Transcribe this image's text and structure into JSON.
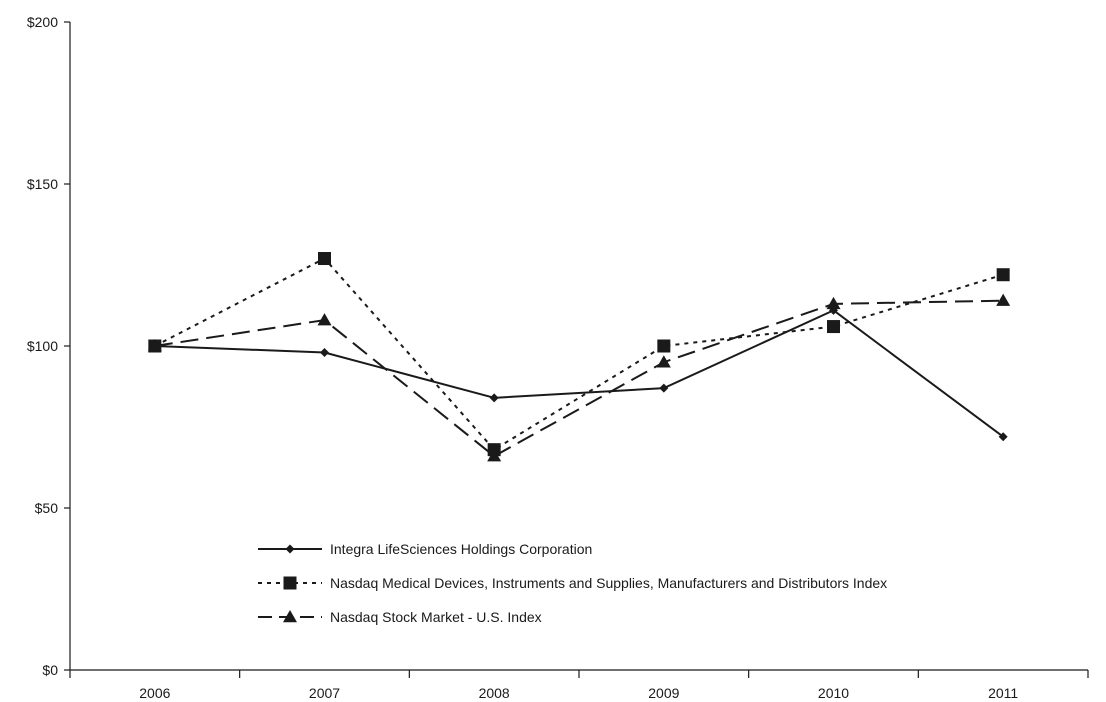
{
  "chart_data": {
    "type": "line",
    "title": "",
    "xlabel": "",
    "ylabel": "",
    "categories": [
      "2006",
      "2007",
      "2008",
      "2009",
      "2010",
      "2011"
    ],
    "ylim": [
      0,
      200
    ],
    "yticks": [
      0,
      50,
      100,
      150,
      200
    ],
    "ytick_labels": [
      "$0",
      "$50",
      "$100",
      "$150",
      "$200"
    ],
    "grid": false,
    "legend_position": "lower-left",
    "series": [
      {
        "name": "Integra LifeSciences Holdings Corporation",
        "values": [
          100,
          98,
          84,
          87,
          111,
          72
        ],
        "line_style": "solid",
        "marker": "diamond",
        "color": "#1a1a1a"
      },
      {
        "name": "Nasdaq Medical Devices, Instruments and Supplies, Manufacturers and Distributors Index",
        "values": [
          100,
          127,
          68,
          100,
          106,
          122
        ],
        "line_style": "dotted",
        "marker": "square",
        "color": "#1a1a1a"
      },
      {
        "name": "Nasdaq Stock Market - U.S. Index",
        "values": [
          100,
          108,
          66,
          95,
          113,
          114
        ],
        "line_style": "dashed",
        "marker": "triangle",
        "color": "#1a1a1a"
      }
    ]
  }
}
